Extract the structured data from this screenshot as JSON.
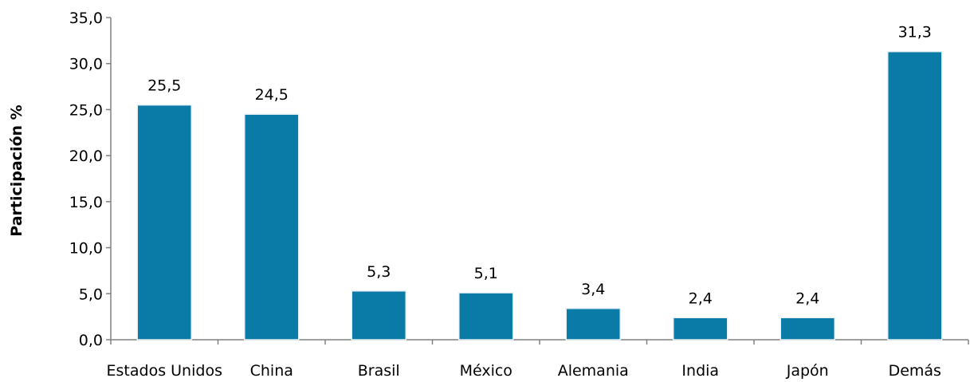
{
  "chart_data": {
    "type": "bar",
    "title": "",
    "xlabel": "",
    "ylabel": "Participación %",
    "categories": [
      "Estados Unidos",
      "China",
      "Brasil",
      "México",
      "Alemania",
      "India",
      "Japón",
      "Demás"
    ],
    "values": [
      25.5,
      24.5,
      5.3,
      5.1,
      3.4,
      2.4,
      2.4,
      31.3
    ],
    "data_labels": [
      "25,5",
      "24,5",
      "5,3",
      "5,1",
      "3,4",
      "2,4",
      "2,4",
      "31,3"
    ],
    "ylim": [
      0,
      35
    ],
    "y_ticks": [
      0,
      5,
      10,
      15,
      20,
      25,
      30,
      35
    ],
    "y_tick_labels": [
      "0,0",
      "5,0",
      "10,0",
      "15,0",
      "20,0",
      "25,0",
      "30,0",
      "35,0"
    ],
    "grid": false,
    "legend": "none",
    "bar_color": "#0a7aa6",
    "bar_edge_color": "#e8f2f6",
    "axis_color": "#808080"
  }
}
